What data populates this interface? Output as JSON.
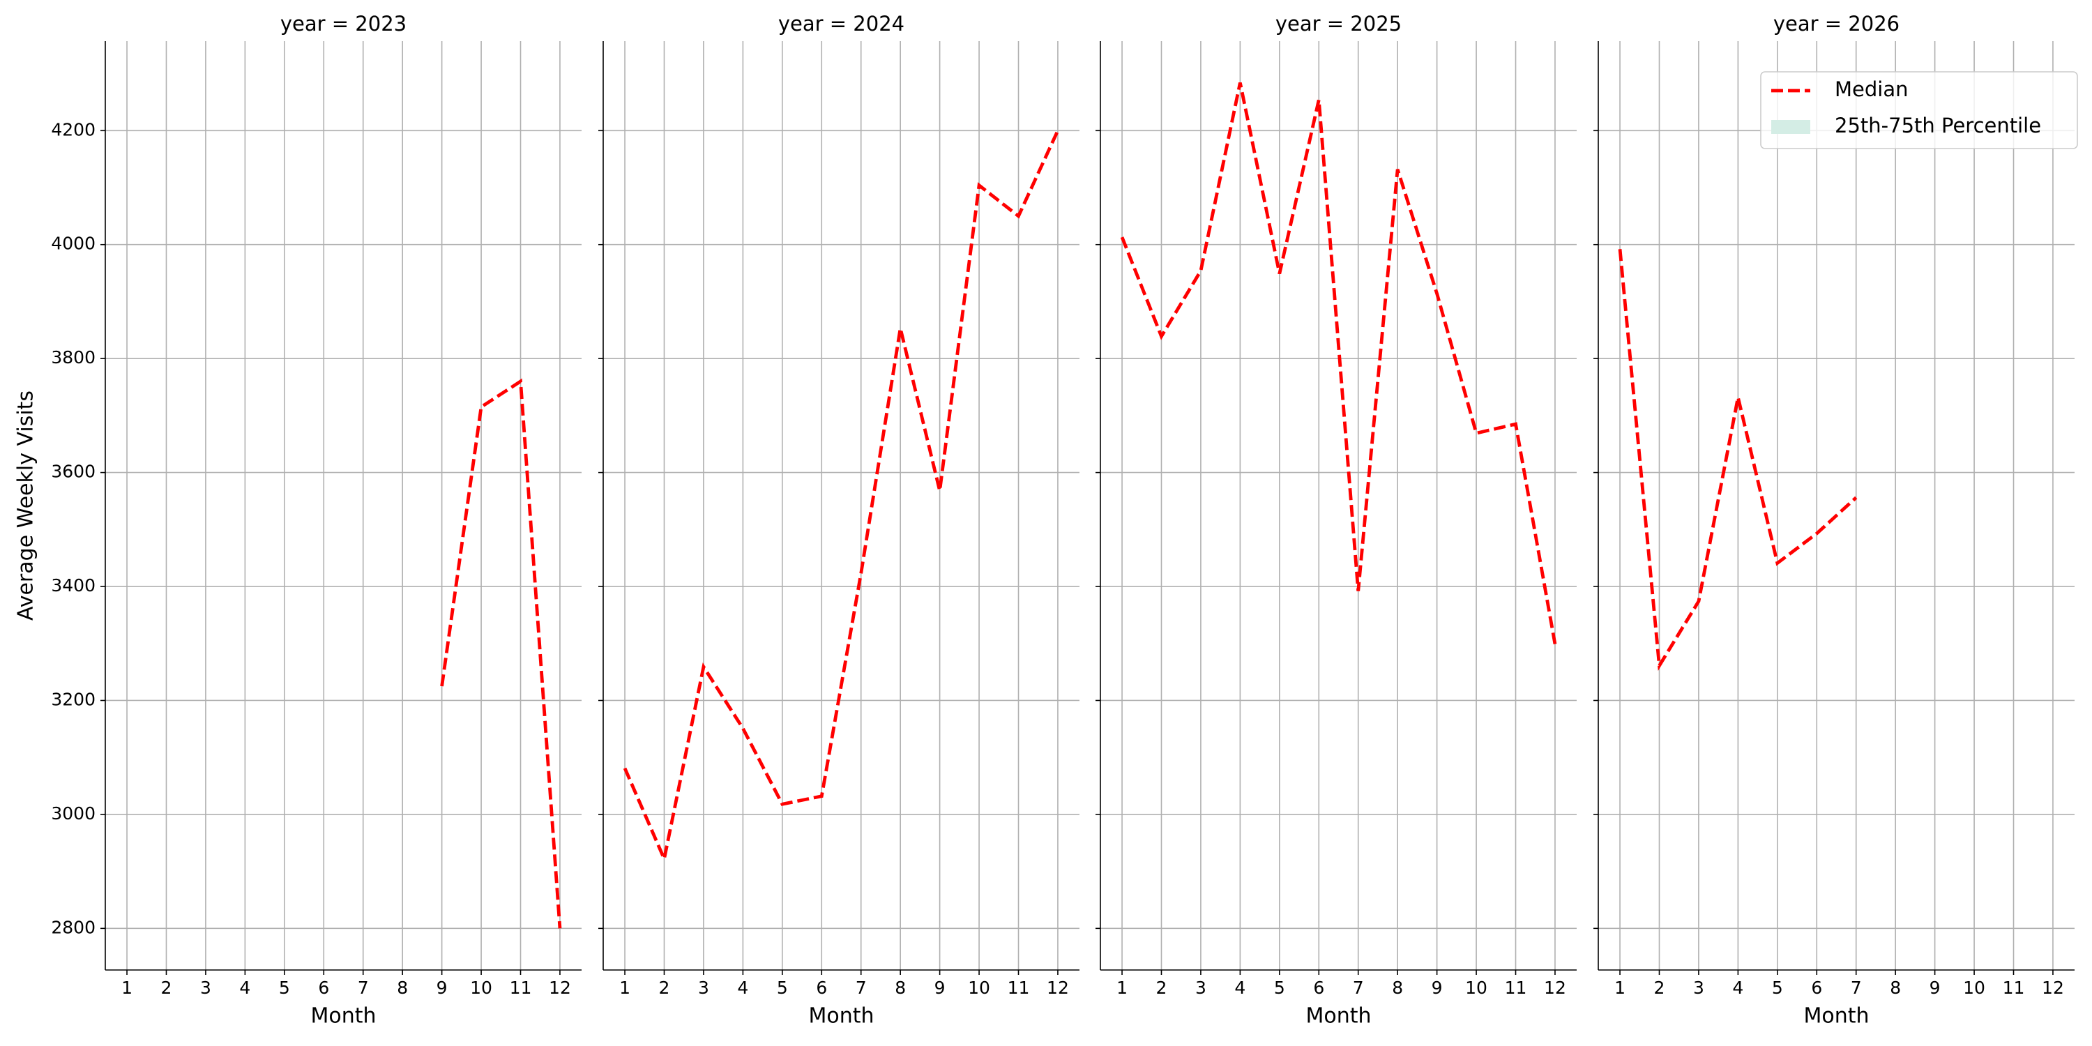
{
  "chart_data": [
    {
      "type": "line",
      "title": "year = 2023",
      "xlabel": "Month",
      "ylabel": "Average Weekly Visits",
      "x": [
        1,
        2,
        3,
        4,
        5,
        6,
        7,
        8,
        9,
        10,
        11,
        12
      ],
      "series": [
        {
          "name": "Median",
          "color": "#ff0000",
          "style": "dashed",
          "values": [
            null,
            null,
            null,
            null,
            null,
            null,
            null,
            null,
            3225,
            3715,
            3760,
            2800
          ]
        }
      ],
      "xlim": [
        0.45,
        12.55
      ],
      "xticks": [
        1,
        2,
        3,
        4,
        5,
        6,
        7,
        8,
        9,
        10,
        11,
        12
      ],
      "ylim": [
        2727,
        4357
      ],
      "yticks": [
        2800,
        3000,
        3200,
        3400,
        3600,
        3800,
        4000,
        4200
      ],
      "grid": true
    },
    {
      "type": "line",
      "title": "year = 2024",
      "xlabel": "Month",
      "x": [
        1,
        2,
        3,
        4,
        5,
        6,
        7,
        8,
        9,
        10,
        11,
        12
      ],
      "series": [
        {
          "name": "Median",
          "color": "#ff0000",
          "style": "dashed",
          "values": [
            3081,
            2922,
            3259,
            3151,
            3018,
            3032,
            3423,
            3853,
            3568,
            4104,
            4050,
            4200
          ]
        }
      ],
      "xlim": [
        0.45,
        12.55
      ],
      "xticks": [
        1,
        2,
        3,
        4,
        5,
        6,
        7,
        8,
        9,
        10,
        11,
        12
      ],
      "ylim": [
        2727,
        4357
      ],
      "yticks": [
        2800,
        3000,
        3200,
        3400,
        3600,
        3800,
        4000,
        4200
      ],
      "grid": true
    },
    {
      "type": "line",
      "title": "year = 2025",
      "xlabel": "Month",
      "x": [
        1,
        2,
        3,
        4,
        5,
        6,
        7,
        8,
        9,
        10,
        11,
        12
      ],
      "series": [
        {
          "name": "Median",
          "color": "#ff0000",
          "style": "dashed",
          "values": [
            4013,
            3839,
            3954,
            4284,
            3949,
            4254,
            3392,
            4132,
            3914,
            3669,
            3685,
            3299
          ]
        }
      ],
      "xlim": [
        0.45,
        12.55
      ],
      "xticks": [
        1,
        2,
        3,
        4,
        5,
        6,
        7,
        8,
        9,
        10,
        11,
        12
      ],
      "ylim": [
        2727,
        4357
      ],
      "yticks": [
        2800,
        3000,
        3200,
        3400,
        3600,
        3800,
        4000,
        4200
      ],
      "grid": true
    },
    {
      "type": "line",
      "title": "year = 2026",
      "xlabel": "Month",
      "x": [
        1,
        2,
        3,
        4,
        5,
        6,
        7,
        8,
        9,
        10,
        11,
        12
      ],
      "series": [
        {
          "name": "Median",
          "color": "#ff0000",
          "style": "dashed",
          "values": [
            3992,
            3261,
            3374,
            3732,
            3441,
            3493,
            3556,
            null,
            null,
            null,
            null,
            null
          ]
        }
      ],
      "xlim": [
        0.45,
        12.55
      ],
      "xticks": [
        1,
        2,
        3,
        4,
        5,
        6,
        7,
        8,
        9,
        10,
        11,
        12
      ],
      "ylim": [
        2727,
        4357
      ],
      "yticks": [
        2800,
        3000,
        3200,
        3400,
        3600,
        3800,
        4000,
        4200
      ],
      "grid": true,
      "legend": {
        "position": "upper right",
        "items": [
          {
            "name": "Median",
            "color": "#ff0000",
            "style": "dashed"
          },
          {
            "name": "25th-75th Percentile",
            "color": "#d4ede5",
            "style": "patch"
          }
        ]
      }
    }
  ]
}
